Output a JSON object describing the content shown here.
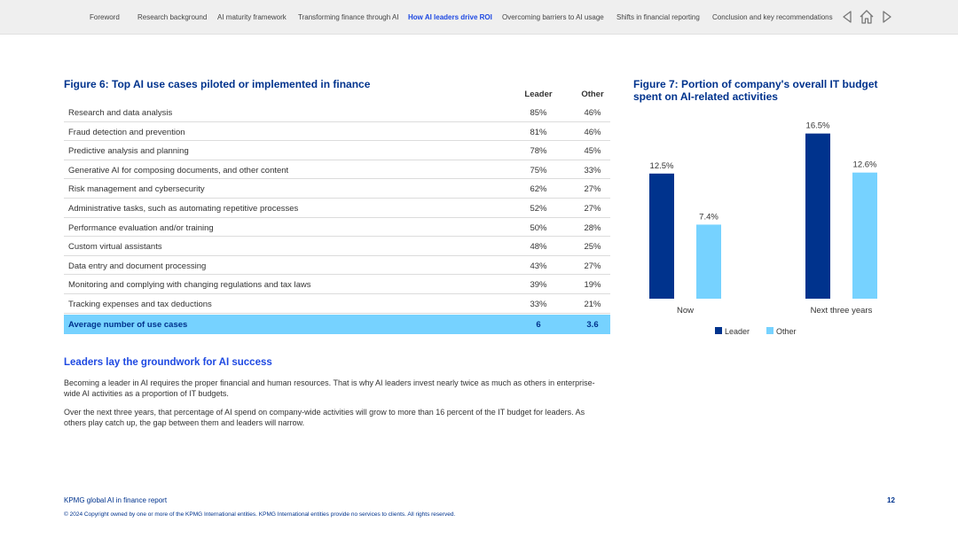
{
  "nav": {
    "items": [
      "Foreword",
      "Research background",
      "AI maturity framework",
      "Transforming finance through AI",
      "How AI leaders drive ROI",
      "Overcoming barriers to AI usage",
      "Shifts in financial reporting",
      "Conclusion and key recommendations"
    ],
    "active_index": 4,
    "icons": [
      "previous-arrow-icon",
      "home-icon",
      "next-arrow-icon"
    ]
  },
  "figure6": {
    "title": "Figure 6: Top AI use cases piloted or implemented in finance",
    "col_leader": "Leader",
    "col_other": "Other",
    "rows": [
      {
        "label": "Research and data analysis",
        "leader": "85%",
        "other": "46%"
      },
      {
        "label": "Fraud detection and prevention",
        "leader": "81%",
        "other": "46%"
      },
      {
        "label": "Predictive analysis and planning",
        "leader": "78%",
        "other": "45%"
      },
      {
        "label": "Generative AI for composing documents, and other content",
        "leader": "75%",
        "other": "33%"
      },
      {
        "label": "Risk management and cybersecurity",
        "leader": "62%",
        "other": "27%"
      },
      {
        "label": "Administrative tasks, such as automating repetitive processes",
        "leader": "52%",
        "other": "27%"
      },
      {
        "label": "Performance evaluation and/or training",
        "leader": "50%",
        "other": "28%"
      },
      {
        "label": "Custom virtual assistants",
        "leader": "48%",
        "other": "25%"
      },
      {
        "label": "Data entry and document processing",
        "leader": "43%",
        "other": "27%"
      },
      {
        "label": "Monitoring and complying with changing regulations and tax laws",
        "leader": "39%",
        "other": "19%"
      },
      {
        "label": "Tracking expenses and tax deductions",
        "leader": "33%",
        "other": "21%"
      }
    ],
    "total": {
      "label": "Average number of use cases",
      "leader": "6",
      "other": "3.6"
    }
  },
  "figure7": {
    "title_line1": "Figure 7: Portion of company's overall IT budget",
    "title_line2": "spent on AI-related activities"
  },
  "chart_data": {
    "type": "bar",
    "categories": [
      "Now",
      "Next three years"
    ],
    "series": [
      {
        "name": "Leader",
        "values": [
          12.5,
          16.5
        ],
        "color": "#00338d"
      },
      {
        "name": "Other",
        "values": [
          7.4,
          12.6
        ],
        "color": "#76d2ff"
      }
    ],
    "value_labels": [
      [
        "12.5%",
        "16.5%"
      ],
      [
        "7.4%",
        "12.6%"
      ]
    ],
    "ylim": [
      0,
      17
    ],
    "legend": "bottom-center",
    "grid": false
  },
  "text": {
    "heading": "Leaders lay the groundwork for AI success",
    "para1": "Becoming a leader in AI requires the proper financial and human resources. That is why AI leaders invest nearly twice as much as others in enterprise-wide AI activities as a proportion of IT budgets.",
    "para2": "Over the next three years, that percentage of AI spend on company-wide activities will grow to more than 16 percent of the IT budget for leaders. As others play catch up, the gap between them and leaders will narrow."
  },
  "footer": {
    "title": "KPMG global AI in finance report",
    "page": "12",
    "copyright": "© 2024 Copyright owned by one or more of the KPMG International entities. KPMG International entities provide no services to clients. All rights reserved."
  },
  "colors": {
    "kpmg_blue": "#00338d",
    "cobalt": "#1e49e2",
    "light_blue": "#76d2ff",
    "nav_bg": "#efefef"
  }
}
